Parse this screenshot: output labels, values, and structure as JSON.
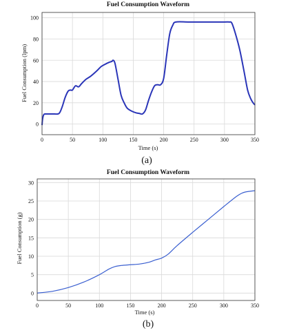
{
  "chart_data": [
    {
      "type": "line",
      "title": "Fuel Consumption Waveform",
      "xlabel": "Time (s)",
      "ylabel": "Fuel Consumption (lpm)",
      "caption": "(a)",
      "xlim": [
        0,
        350
      ],
      "ylim": [
        -10,
        105
      ],
      "xticks": [
        0,
        50,
        100,
        150,
        200,
        250,
        300,
        350
      ],
      "yticks": [
        0,
        20,
        40,
        60,
        80,
        100
      ],
      "grid": true,
      "line_color": "#2a35b8",
      "series": [
        {
          "x": [
            0,
            1,
            3,
            6,
            10,
            20,
            28,
            33,
            38,
            43,
            47,
            50,
            55,
            60,
            65,
            72,
            80,
            90,
            97,
            103,
            110,
            115,
            117,
            120,
            125,
            130,
            135,
            140,
            148,
            155,
            160,
            165,
            170,
            175,
            180,
            185,
            190,
            195,
            200,
            205,
            210,
            215,
            220,
            240,
            260,
            280,
            300,
            308,
            312,
            318,
            325,
            332,
            338,
            343,
            347,
            350
          ],
          "y": [
            -1,
            5,
            9,
            9.5,
            9.5,
            9.5,
            10,
            16,
            25,
            31,
            32,
            32,
            36,
            35,
            38,
            42,
            45,
            50,
            54,
            56,
            58,
            59,
            60,
            57,
            42,
            27,
            20,
            15,
            12,
            10.5,
            10,
            9.5,
            13,
            22,
            30,
            36,
            37,
            37,
            43,
            65,
            85,
            93,
            96,
            96,
            96,
            96,
            96,
            96,
            95,
            85,
            70,
            50,
            32,
            24,
            20,
            18
          ]
        }
      ]
    },
    {
      "type": "line",
      "title": "Fuel Consumption Waveform",
      "xlabel": "Time (s)",
      "ylabel": "Fuel Consumption (g)",
      "caption": "(b)",
      "xlim": [
        0,
        350
      ],
      "ylim": [
        -2,
        31
      ],
      "xticks": [
        0,
        50,
        100,
        150,
        200,
        250,
        300,
        350
      ],
      "yticks": [
        0,
        5,
        10,
        15,
        20,
        25,
        30
      ],
      "grid": true,
      "line_color": "#3a5fd0",
      "series": [
        {
          "x": [
            0,
            25,
            50,
            75,
            100,
            115,
            125,
            135,
            150,
            165,
            180,
            190,
            200,
            210,
            225,
            250,
            275,
            300,
            320,
            330,
            340,
            350
          ],
          "y": [
            0,
            0.5,
            1.5,
            3,
            5,
            6.5,
            7.2,
            7.5,
            7.7,
            7.9,
            8.4,
            9,
            9.5,
            10.5,
            12.9,
            16.5,
            20,
            23.5,
            26.2,
            27.2,
            27.6,
            27.8
          ]
        }
      ]
    }
  ]
}
